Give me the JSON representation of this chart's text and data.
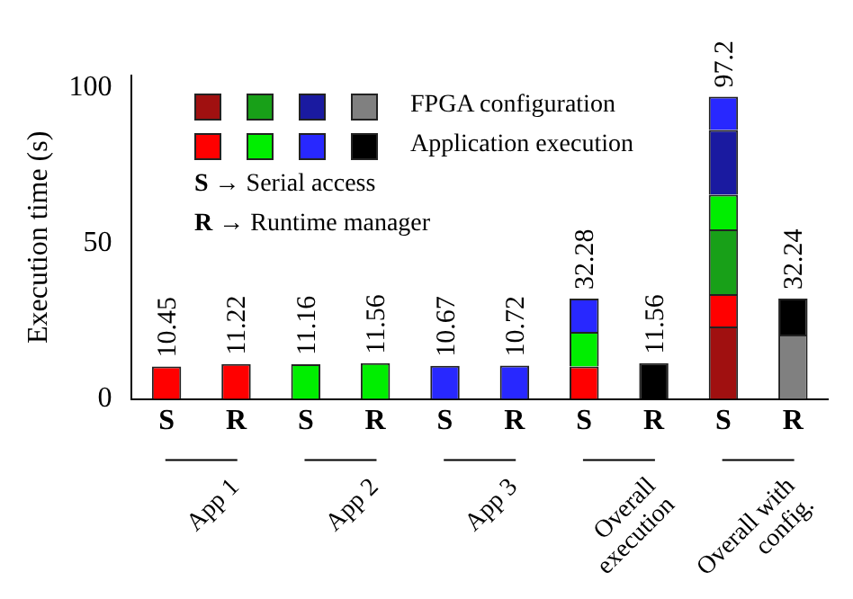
{
  "chart_data": {
    "type": "bar",
    "stacked": true,
    "ylabel": "Execution time (s)",
    "categories": [
      "S",
      "R",
      "S",
      "R",
      "S",
      "R",
      "S",
      "R",
      "S",
      "R"
    ],
    "series": [
      {
        "color": "#a01010",
        "values": [
          null,
          null,
          null,
          null,
          null,
          null,
          null,
          null,
          23.3,
          null
        ]
      },
      {
        "color": "#ff0000",
        "values": [
          10.45,
          11.22,
          null,
          null,
          null,
          null,
          10.45,
          null,
          10.45,
          null
        ]
      },
      {
        "color": "#18a018",
        "values": [
          null,
          null,
          null,
          null,
          null,
          null,
          null,
          null,
          20.8,
          null
        ]
      },
      {
        "color": "#00ee00",
        "values": [
          null,
          null,
          11.16,
          11.56,
          null,
          null,
          11.16,
          null,
          11.16,
          null
        ]
      },
      {
        "color": "#1a1aa0",
        "values": [
          null,
          null,
          null,
          null,
          null,
          null,
          null,
          null,
          20.8,
          null
        ]
      },
      {
        "color": "#2828ff",
        "values": [
          null,
          null,
          null,
          null,
          10.67,
          10.72,
          10.67,
          null,
          10.67,
          null
        ]
      },
      {
        "name": "FPGA configuration",
        "color": "#808080",
        "values": [
          null,
          null,
          null,
          null,
          null,
          null,
          null,
          null,
          null,
          20.68
        ]
      },
      {
        "name": "Application execution",
        "color": "#000000",
        "values": [
          null,
          null,
          null,
          null,
          null,
          null,
          null,
          11.56,
          null,
          11.56
        ]
      }
    ],
    "totals": [
      "10.45",
      "11.22",
      "11.16",
      "11.56",
      "10.67",
      "10.72",
      "32.28",
      "11.56",
      "97.2",
      "32.24"
    ],
    "ylim": [
      0,
      104
    ],
    "yticks": [
      0,
      50,
      100
    ],
    "grid": false,
    "legend": "top left",
    "annotations": [
      "S → Serial access",
      "R → Runtime manager",
      "App 1",
      "App 2",
      "App 3",
      "Overall execution",
      "Overall with config."
    ]
  }
}
